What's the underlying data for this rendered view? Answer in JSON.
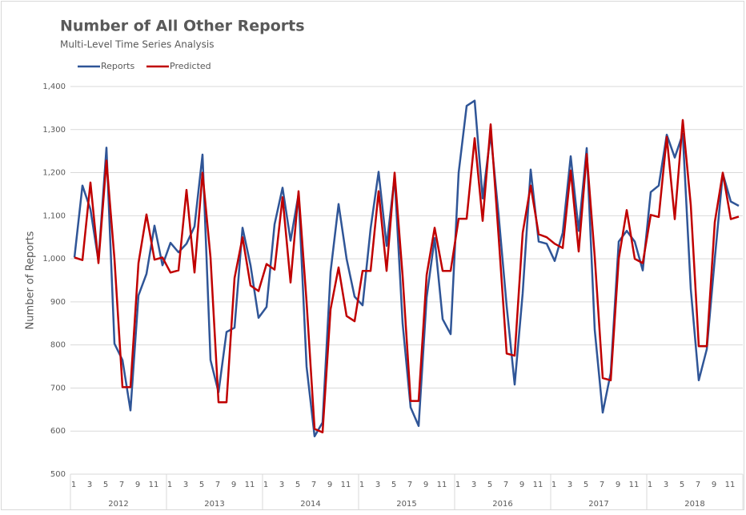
{
  "chart_data": {
    "type": "line",
    "title": "Number of All Other Reports",
    "subtitle": "Multi-Level Time Series Analysis",
    "y_label": "Number of Reports",
    "categories": [
      "1",
      null,
      "3",
      null,
      "5",
      null,
      "7",
      null,
      "9",
      null,
      "11",
      null,
      "1",
      null,
      "3",
      null,
      "5",
      null,
      "7",
      null,
      "9",
      null,
      "11",
      null,
      "1",
      null,
      "3",
      null,
      "5",
      null,
      "7",
      null,
      "9",
      null,
      "11",
      null,
      "1",
      null,
      "3",
      null,
      "5",
      null,
      "7",
      null,
      "9",
      null,
      "11",
      null,
      "1",
      null,
      "3",
      null,
      "5",
      null,
      "7",
      null,
      "9",
      null,
      "11",
      null,
      "1",
      null,
      "3",
      null,
      "5",
      null,
      "7",
      null,
      "9",
      null,
      "11",
      null,
      "1",
      null,
      "3",
      null,
      "5",
      null,
      "7",
      null,
      "9",
      null,
      "11",
      null
    ],
    "year_groups": [
      "2012",
      "2013",
      "2014",
      "2015",
      "2016",
      "2017",
      "2018"
    ],
    "series": [
      {
        "name": "Reports",
        "color": "#2f5597",
        "values": [
          1003,
          1170,
          1115,
          995,
          1258,
          803,
          765,
          648,
          915,
          965,
          1077,
          985,
          1037,
          1015,
          1035,
          1075,
          1242,
          765,
          690,
          830,
          840,
          1072,
          985,
          863,
          888,
          1080,
          1165,
          1042,
          1150,
          750,
          588,
          620,
          970,
          1127,
          1000,
          912,
          892,
          1070,
          1202,
          1030,
          1190,
          850,
          655,
          612,
          910,
          1048,
          860,
          825,
          1200,
          1355,
          1367,
          1140,
          1290,
          1100,
          890,
          708,
          920,
          1207,
          1040,
          1035,
          995,
          1060,
          1238,
          1065,
          1257,
          835,
          643,
          735,
          1040,
          1065,
          1040,
          973,
          1155,
          1170,
          1288,
          1235,
          1290,
          930,
          718,
          790,
          1000,
          1198,
          1133,
          1123
        ]
      },
      {
        "name": "Predicted",
        "color": "#c00000",
        "values": [
          1003,
          997,
          1177,
          990,
          1228,
          1000,
          702,
          702,
          990,
          1103,
          998,
          1003,
          968,
          973,
          1160,
          968,
          1200,
          1003,
          667,
          667,
          955,
          1050,
          938,
          925,
          988,
          975,
          1143,
          945,
          1157,
          900,
          605,
          597,
          883,
          980,
          867,
          855,
          972,
          972,
          1157,
          972,
          1200,
          960,
          670,
          670,
          962,
          1072,
          972,
          972,
          1093,
          1093,
          1280,
          1088,
          1312,
          1050,
          780,
          775,
          1060,
          1170,
          1057,
          1050,
          1035,
          1025,
          1205,
          1017,
          1243,
          1005,
          723,
          718,
          1000,
          1113,
          1000,
          990,
          1102,
          1097,
          1283,
          1092,
          1322,
          1125,
          797,
          797,
          1085,
          1200,
          1092,
          1098
        ]
      }
    ],
    "ylim": [
      500,
      1400
    ],
    "yticks": [
      500,
      600,
      700,
      800,
      900,
      {
        "value": 1000,
        "label": "1,000"
      },
      {
        "value": 1100,
        "label": "1,100"
      },
      {
        "value": 1200,
        "label": "1,200"
      },
      {
        "value": 1300,
        "label": "1,300"
      },
      {
        "value": 1400,
        "label": "1,400"
      }
    ],
    "grid": true,
    "legend": "top-left"
  }
}
